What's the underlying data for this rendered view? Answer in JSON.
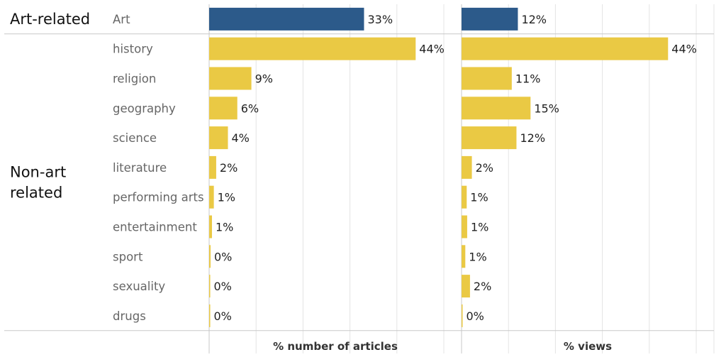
{
  "chart_data": {
    "type": "bar",
    "orientation": "horizontal",
    "groups": [
      {
        "label": "Art-related",
        "categories": [
          "Art"
        ]
      },
      {
        "label": "Non-art related",
        "label_lines": [
          "Non-art",
          "related"
        ],
        "categories": [
          "history",
          "religion",
          "geography",
          "science",
          "literature",
          "performing arts",
          "entertainment",
          "sport",
          "sexuality",
          "drugs"
        ]
      }
    ],
    "categories": [
      "Art",
      "history",
      "religion",
      "geography",
      "science",
      "literature",
      "performing arts",
      "entertainment",
      "sport",
      "sexuality",
      "drugs"
    ],
    "series": [
      {
        "name": "% number of articles",
        "values": [
          33,
          44,
          9,
          6,
          4,
          2,
          1,
          1,
          0,
          0,
          0
        ],
        "value_precise": [
          33,
          44,
          9,
          6,
          4,
          1.5,
          1,
          0.6,
          0.3,
          0.15,
          0.2
        ],
        "labels": [
          "33%",
          "44%",
          "9%",
          "6%",
          "4%",
          "2%",
          "1%",
          "1%",
          "0%",
          "0%",
          "0%"
        ]
      },
      {
        "name": "% views",
        "values": [
          12,
          44,
          11,
          15,
          12,
          2,
          1,
          1,
          1,
          2,
          0
        ],
        "value_precise": [
          12,
          44,
          10.7,
          14.7,
          11.7,
          2.2,
          1.1,
          1.2,
          0.8,
          1.8,
          0.2
        ],
        "labels": [
          "12%",
          "44%",
          "11%",
          "15%",
          "12%",
          "2%",
          "1%",
          "1%",
          "1%",
          "2%",
          "0%"
        ]
      }
    ],
    "xlim": [
      0,
      50
    ],
    "grid": true,
    "colors": {
      "art": "#2c5a8a",
      "non_art": "#eac944",
      "grid": "#e4e4e4",
      "divider": "#c8c8c8"
    }
  }
}
